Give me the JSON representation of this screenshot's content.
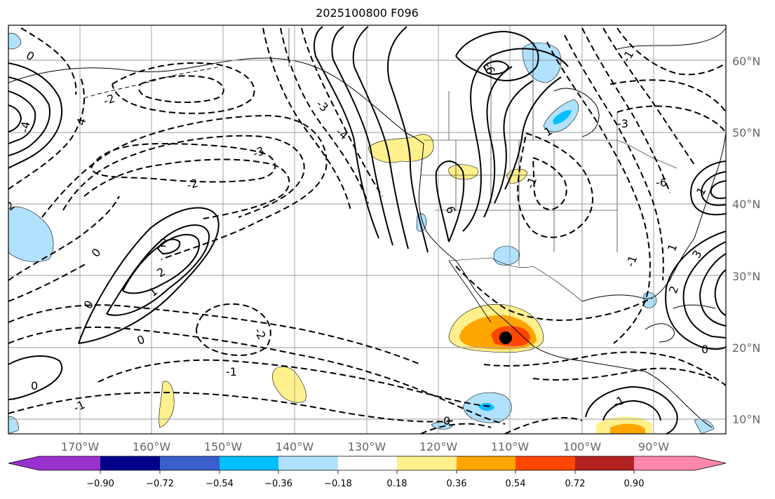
{
  "title": "2025100800 F096",
  "map": {
    "latitude_labels": [
      "60°N",
      "50°N",
      "40°N",
      "30°N",
      "20°N",
      "10°N"
    ],
    "longitude_labels": [
      "170°W",
      "160°W",
      "150°W",
      "140°W",
      "130°W",
      "120°W",
      "110°W",
      "100°W",
      "90°W"
    ],
    "contour_labels": [
      "0",
      "-1",
      "-2",
      "-3",
      "2",
      "-2",
      "2",
      "1",
      "0",
      "0",
      "-2",
      "-1",
      "0",
      "-1",
      "0",
      "1",
      "6",
      "-6",
      "-3",
      "1",
      "-1",
      "0",
      "2",
      "3",
      "-1",
      "-3",
      "-4",
      "-9",
      "-4",
      "4",
      "0",
      "-2",
      "-1",
      "1",
      "-6"
    ],
    "marker": "black-dot-storm-center"
  },
  "colorbar": {
    "ticks": [
      "−0.90",
      "−0.72",
      "−0.54",
      "−0.36",
      "−0.18",
      "0.18",
      "0.36",
      "0.54",
      "0.72",
      "0.90"
    ],
    "colors": [
      "#9932cc",
      "#00008b",
      "#3a5fcd",
      "#00bfff",
      "#b0e2ff",
      "#ffffff",
      "#fff08c",
      "#ffa500",
      "#ff4500",
      "#b22222",
      "#ff88aa"
    ]
  }
}
